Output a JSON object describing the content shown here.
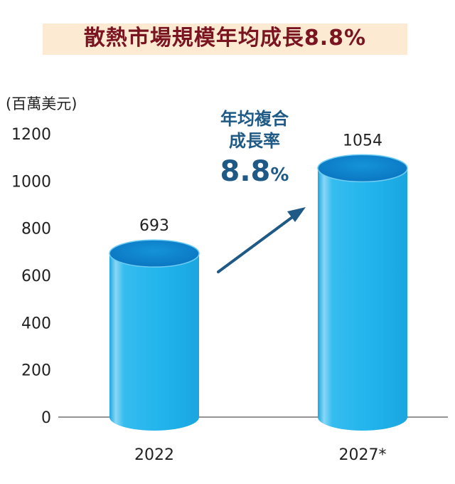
{
  "title": "散熱市場規模年均成長8.8%",
  "unit_label": "(百萬美元)",
  "annotation": {
    "line1": "年均複合",
    "line2": "成長率",
    "value": "8.8",
    "suffix": "%"
  },
  "colors": {
    "title": "#7a1420",
    "title_band": "#fcebd2",
    "cylinder": "#22b5ec",
    "cylinder_top": "#0f87cf",
    "arrow": "#1e5a85"
  },
  "chart_data": {
    "type": "bar",
    "title": "散熱市場規模年均成長8.8%",
    "ylabel": "(百萬美元)",
    "xlabel": "",
    "categories": [
      "2022",
      "2027*"
    ],
    "values": [
      693,
      1054
    ],
    "value_labels": [
      "693",
      "1054"
    ],
    "yticks": [
      0,
      200,
      400,
      600,
      800,
      1000,
      1200
    ],
    "ytick_labels": [
      "0",
      "200",
      "400",
      "600",
      "800",
      "1000",
      "1200"
    ],
    "ylim": [
      0,
      1200
    ],
    "grid": false,
    "legend": "none"
  }
}
